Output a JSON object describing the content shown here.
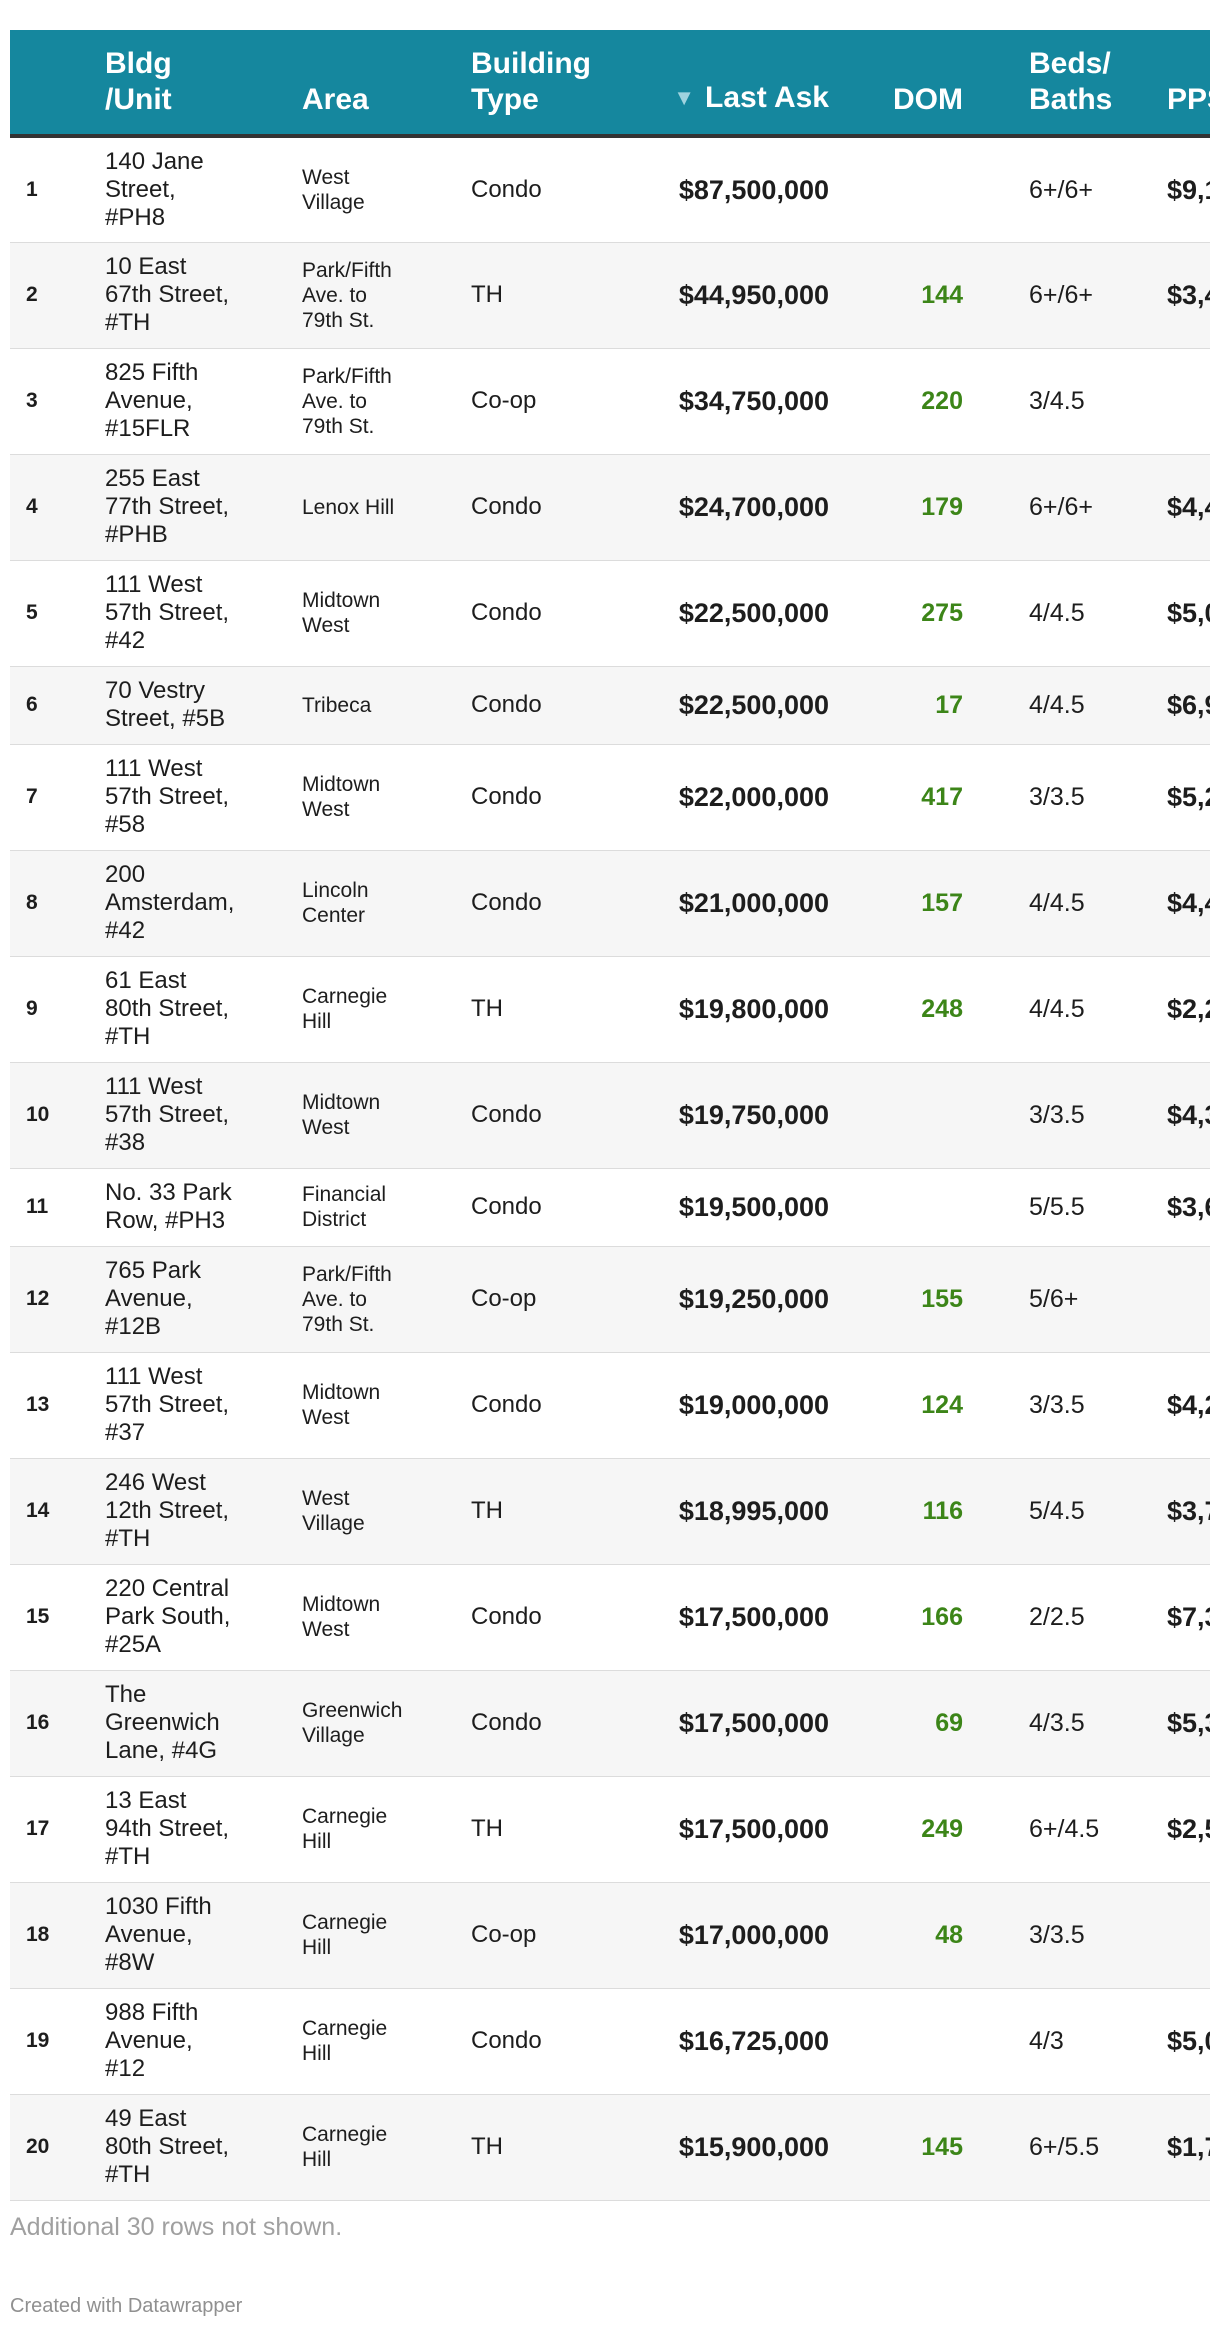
{
  "chart_data": {
    "type": "table",
    "columns": [
      "",
      "Bldg\n/Unit",
      "Area",
      "Building\nType",
      "Last Ask",
      "DOM",
      "Beds/\nBaths",
      "PPSF"
    ],
    "header": {
      "index": "",
      "bldg": [
        "Bldg",
        "/Unit"
      ],
      "area": "Area",
      "type": [
        "Building",
        "Type"
      ],
      "ask": "Last Ask",
      "dom": "DOM",
      "beds": [
        "Beds/",
        "Baths"
      ],
      "pps": "PPSF"
    },
    "sort_column": "Last Ask",
    "sort_direction": "descending",
    "colors": {
      "header_bg": "#15879e",
      "header_text": "#ffffff",
      "dom_text": "#3c8518",
      "row_alt": "#f6f6f6"
    },
    "rows": [
      {
        "n": "1",
        "bldg": [
          "140 Jane",
          "Street,",
          "#PH8"
        ],
        "area": [
          "West",
          "Village"
        ],
        "type": "Condo",
        "ask": "$87,500,000",
        "dom": "",
        "beds": "6+/6+",
        "pps": "$9,1"
      },
      {
        "n": "2",
        "bldg": [
          "10 East",
          "67th Street,",
          "#TH"
        ],
        "area": [
          "Park/Fifth",
          "Ave. to",
          "79th St."
        ],
        "type": "TH",
        "ask": "$44,950,000",
        "dom": "144",
        "beds": "6+/6+",
        "pps": "$3,4"
      },
      {
        "n": "3",
        "bldg": [
          "825 Fifth",
          "Avenue,",
          "#15FLR"
        ],
        "area": [
          "Park/Fifth",
          "Ave. to",
          "79th St."
        ],
        "type": "Co-op",
        "ask": "$34,750,000",
        "dom": "220",
        "beds": "3/4.5",
        "pps": ""
      },
      {
        "n": "4",
        "bldg": [
          "255 East",
          "77th Street,",
          "#PHB"
        ],
        "area": [
          "Lenox Hill"
        ],
        "type": "Condo",
        "ask": "$24,700,000",
        "dom": "179",
        "beds": "6+/6+",
        "pps": "$4,4"
      },
      {
        "n": "5",
        "bldg": [
          "111 West",
          "57th Street,",
          "#42"
        ],
        "area": [
          "Midtown",
          "West"
        ],
        "type": "Condo",
        "ask": "$22,500,000",
        "dom": "275",
        "beds": "4/4.5",
        "pps": "$5,0"
      },
      {
        "n": "6",
        "bldg": [
          "70 Vestry",
          "Street, #5B"
        ],
        "area": [
          "Tribeca"
        ],
        "type": "Condo",
        "ask": "$22,500,000",
        "dom": "17",
        "beds": "4/4.5",
        "pps": "$6,9"
      },
      {
        "n": "7",
        "bldg": [
          "111 West",
          "57th Street,",
          "#58"
        ],
        "area": [
          "Midtown",
          "West"
        ],
        "type": "Condo",
        "ask": "$22,000,000",
        "dom": "417",
        "beds": "3/3.5",
        "pps": "$5,2"
      },
      {
        "n": "8",
        "bldg": [
          "200",
          "Amsterdam,",
          "#42"
        ],
        "area": [
          "Lincoln",
          "Center"
        ],
        "type": "Condo",
        "ask": "$21,000,000",
        "dom": "157",
        "beds": "4/4.5",
        "pps": "$4,4"
      },
      {
        "n": "9",
        "bldg": [
          "61 East",
          "80th Street,",
          "#TH"
        ],
        "area": [
          "Carnegie",
          "Hill"
        ],
        "type": "TH",
        "ask": "$19,800,000",
        "dom": "248",
        "beds": "4/4.5",
        "pps": "$2,2"
      },
      {
        "n": "10",
        "bldg": [
          "111 West",
          "57th Street,",
          "#38"
        ],
        "area": [
          "Midtown",
          "West"
        ],
        "type": "Condo",
        "ask": "$19,750,000",
        "dom": "",
        "beds": "3/3.5",
        "pps": "$4,3"
      },
      {
        "n": "11",
        "bldg": [
          "No. 33 Park",
          "Row, #PH3"
        ],
        "area": [
          "Financial",
          "District"
        ],
        "type": "Condo",
        "ask": "$19,500,000",
        "dom": "",
        "beds": "5/5.5",
        "pps": "$3,6"
      },
      {
        "n": "12",
        "bldg": [
          "765 Park",
          "Avenue,",
          "#12B"
        ],
        "area": [
          "Park/Fifth",
          "Ave. to",
          "79th St."
        ],
        "type": "Co-op",
        "ask": "$19,250,000",
        "dom": "155",
        "beds": "5/6+",
        "pps": ""
      },
      {
        "n": "13",
        "bldg": [
          "111 West",
          "57th Street,",
          "#37"
        ],
        "area": [
          "Midtown",
          "West"
        ],
        "type": "Condo",
        "ask": "$19,000,000",
        "dom": "124",
        "beds": "3/3.5",
        "pps": "$4,2"
      },
      {
        "n": "14",
        "bldg": [
          "246 West",
          "12th Street,",
          "#TH"
        ],
        "area": [
          "West",
          "Village"
        ],
        "type": "TH",
        "ask": "$18,995,000",
        "dom": "116",
        "beds": "5/4.5",
        "pps": "$3,7"
      },
      {
        "n": "15",
        "bldg": [
          "220 Central",
          "Park South,",
          "#25A"
        ],
        "area": [
          "Midtown",
          "West"
        ],
        "type": "Condo",
        "ask": "$17,500,000",
        "dom": "166",
        "beds": "2/2.5",
        "pps": "$7,3"
      },
      {
        "n": "16",
        "bldg": [
          "The",
          "Greenwich",
          "Lane, #4G"
        ],
        "area": [
          "Greenwich",
          "Village"
        ],
        "type": "Condo",
        "ask": "$17,500,000",
        "dom": "69",
        "beds": "4/3.5",
        "pps": "$5,3"
      },
      {
        "n": "17",
        "bldg": [
          "13 East",
          "94th Street,",
          "#TH"
        ],
        "area": [
          "Carnegie",
          "Hill"
        ],
        "type": "TH",
        "ask": "$17,500,000",
        "dom": "249",
        "beds": "6+/4.5",
        "pps": "$2,5"
      },
      {
        "n": "18",
        "bldg": [
          "1030 Fifth",
          "Avenue,",
          "#8W"
        ],
        "area": [
          "Carnegie",
          "Hill"
        ],
        "type": "Co-op",
        "ask": "$17,000,000",
        "dom": "48",
        "beds": "3/3.5",
        "pps": ""
      },
      {
        "n": "19",
        "bldg": [
          "988 Fifth",
          "Avenue,",
          "#12"
        ],
        "area": [
          "Carnegie",
          "Hill"
        ],
        "type": "Condo",
        "ask": "$16,725,000",
        "dom": "",
        "beds": "4/3",
        "pps": "$5,0"
      },
      {
        "n": "20",
        "bldg": [
          "49 East",
          "80th Street,",
          "#TH"
        ],
        "area": [
          "Carnegie",
          "Hill"
        ],
        "type": "TH",
        "ask": "$15,900,000",
        "dom": "145",
        "beds": "6+/5.5",
        "pps": "$1,7"
      }
    ]
  },
  "footer": {
    "note": "Additional 30 rows not shown.",
    "credit": "Created with Datawrapper"
  }
}
